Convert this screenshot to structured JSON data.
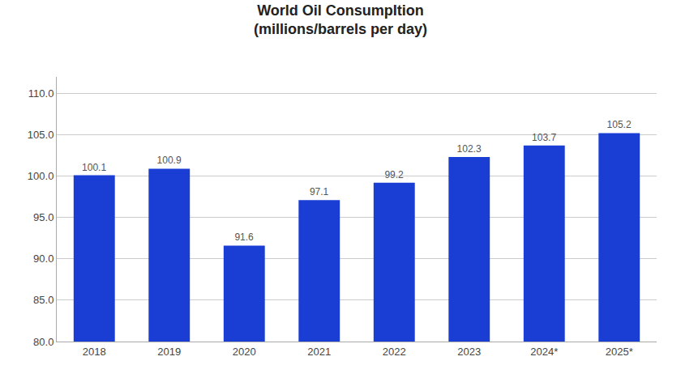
{
  "chart_data": {
    "type": "bar",
    "title": "World Oil ConsumpItion",
    "subtitle": "(millions/barrels per day)",
    "categories": [
      "2018",
      "2019",
      "2020",
      "2021",
      "2022",
      "2023",
      "2024*",
      "2025*"
    ],
    "values": [
      100.1,
      100.9,
      91.6,
      97.1,
      99.2,
      102.3,
      103.7,
      105.2
    ],
    "color": "#1a3ed4",
    "ylim": [
      80.0,
      112.0
    ],
    "yticks": [
      {
        "value": 80,
        "label": "80.0"
      },
      {
        "value": 85,
        "label": "85.0"
      },
      {
        "value": 90,
        "label": "90.0"
      },
      {
        "value": 95,
        "label": "95.0"
      },
      {
        "value": 100,
        "label": "100.0"
      },
      {
        "value": 105,
        "label": "105.0"
      },
      {
        "value": 110,
        "label": "110.0"
      }
    ],
    "grid": true,
    "data_labels": true
  }
}
